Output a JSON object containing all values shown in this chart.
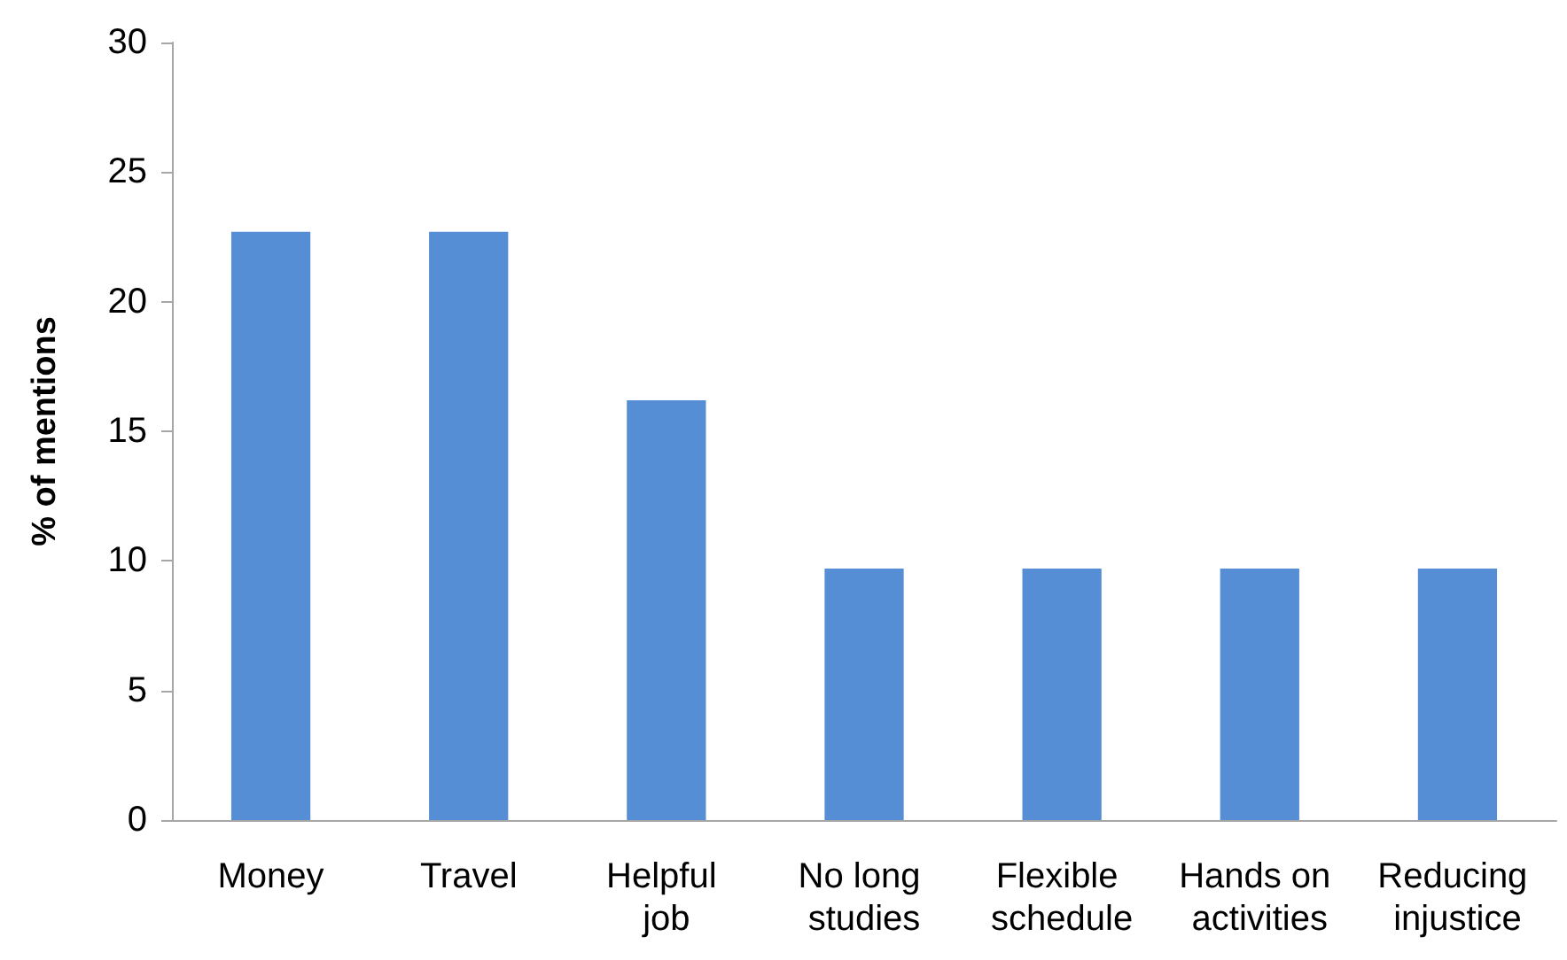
{
  "chart_data": {
    "type": "bar",
    "ylabel": "% of mentions",
    "categories": [
      "Money",
      "Travel",
      "Helpful job",
      "No long studies",
      "Flexible schedule",
      "Hands on activities",
      "Reducing injustice"
    ],
    "values": [
      22.7,
      22.7,
      16.2,
      9.7,
      9.7,
      9.7,
      9.7
    ],
    "color": "#558ed5",
    "ylim": [
      0,
      30
    ],
    "yticks": [
      0,
      5,
      10,
      15,
      20,
      25,
      30
    ],
    "grid": false
  }
}
